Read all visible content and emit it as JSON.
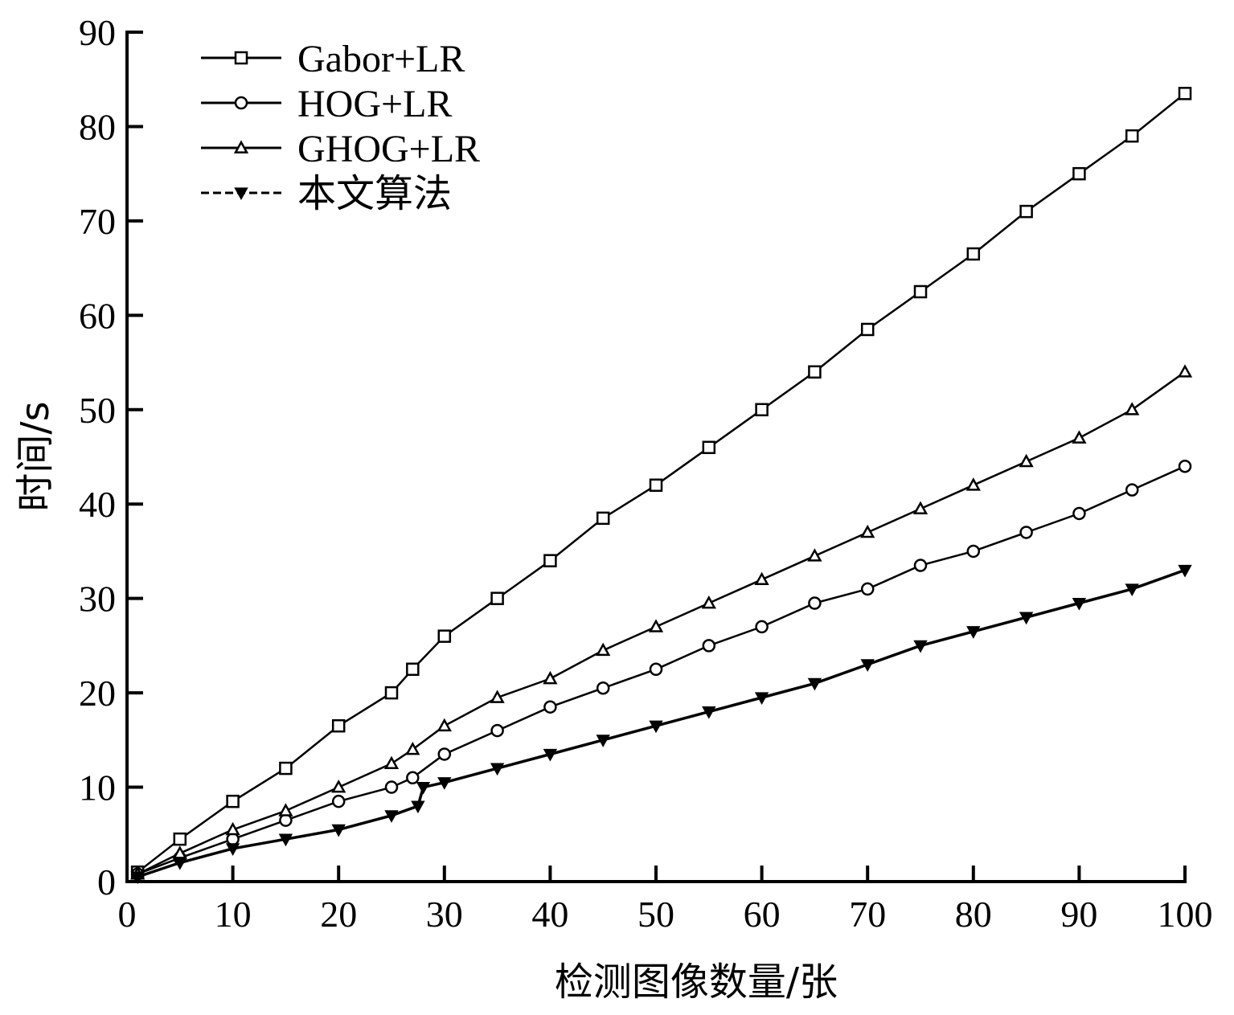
{
  "chart_data": {
    "type": "line",
    "title": "",
    "xlabel": "检测图像数量/张",
    "ylabel": "时间/s",
    "xlim": [
      0,
      100
    ],
    "ylim": [
      0,
      90
    ],
    "xticks": [
      0,
      10,
      20,
      30,
      40,
      50,
      60,
      70,
      80,
      90,
      100
    ],
    "yticks": [
      0,
      10,
      20,
      30,
      40,
      50,
      60,
      70,
      80,
      90
    ],
    "legend_position": "top-left",
    "grid": false,
    "series": [
      {
        "name": "Gabor+LR",
        "marker": "square",
        "color": "#000000",
        "x": [
          1,
          5,
          10,
          15,
          20,
          25,
          27,
          30,
          35,
          40,
          45,
          50,
          55,
          60,
          65,
          70,
          75,
          80,
          85,
          90,
          95,
          100
        ],
        "y": [
          1.0,
          4.5,
          8.5,
          12.0,
          16.5,
          20.0,
          22.5,
          26.0,
          30.0,
          34.0,
          38.5,
          42.0,
          46.0,
          50.0,
          54.0,
          58.5,
          62.5,
          66.5,
          71.0,
          75.0,
          79.0,
          83.5
        ]
      },
      {
        "name": "HOG+LR",
        "marker": "circle",
        "color": "#000000",
        "x": [
          1,
          5,
          10,
          15,
          20,
          25,
          27,
          30,
          35,
          40,
          45,
          50,
          55,
          60,
          65,
          70,
          75,
          80,
          85,
          90,
          95,
          100
        ],
        "y": [
          0.8,
          2.5,
          4.5,
          6.5,
          8.5,
          10.0,
          11.0,
          13.5,
          16.0,
          18.5,
          20.5,
          22.5,
          25.0,
          27.0,
          29.5,
          31.0,
          33.5,
          35.0,
          37.0,
          39.0,
          41.5,
          44.0
        ]
      },
      {
        "name": "GHOG+LR",
        "marker": "triangle",
        "color": "#000000",
        "x": [
          1,
          5,
          10,
          15,
          20,
          25,
          27,
          30,
          35,
          40,
          45,
          50,
          55,
          60,
          65,
          70,
          75,
          80,
          85,
          90,
          95,
          100
        ],
        "y": [
          0.8,
          3.0,
          5.5,
          7.5,
          10.0,
          12.5,
          14.0,
          16.5,
          19.5,
          21.5,
          24.5,
          27.0,
          29.5,
          32.0,
          34.5,
          37.0,
          39.5,
          42.0,
          44.5,
          47.0,
          50.0,
          54.0
        ]
      },
      {
        "name": "本文算法",
        "marker": "triangle-down",
        "color": "#000000",
        "x": [
          1,
          5,
          10,
          15,
          20,
          25,
          27.5,
          28,
          30,
          35,
          40,
          45,
          50,
          55,
          60,
          65,
          70,
          75,
          80,
          85,
          90,
          95,
          100
        ],
        "y": [
          0.5,
          2.0,
          3.5,
          4.5,
          5.5,
          7.0,
          8.0,
          10.0,
          10.5,
          12.0,
          13.5,
          15.0,
          16.5,
          18.0,
          19.5,
          21.0,
          23.0,
          25.0,
          26.5,
          28.0,
          29.5,
          31.0,
          33.0
        ]
      }
    ]
  }
}
